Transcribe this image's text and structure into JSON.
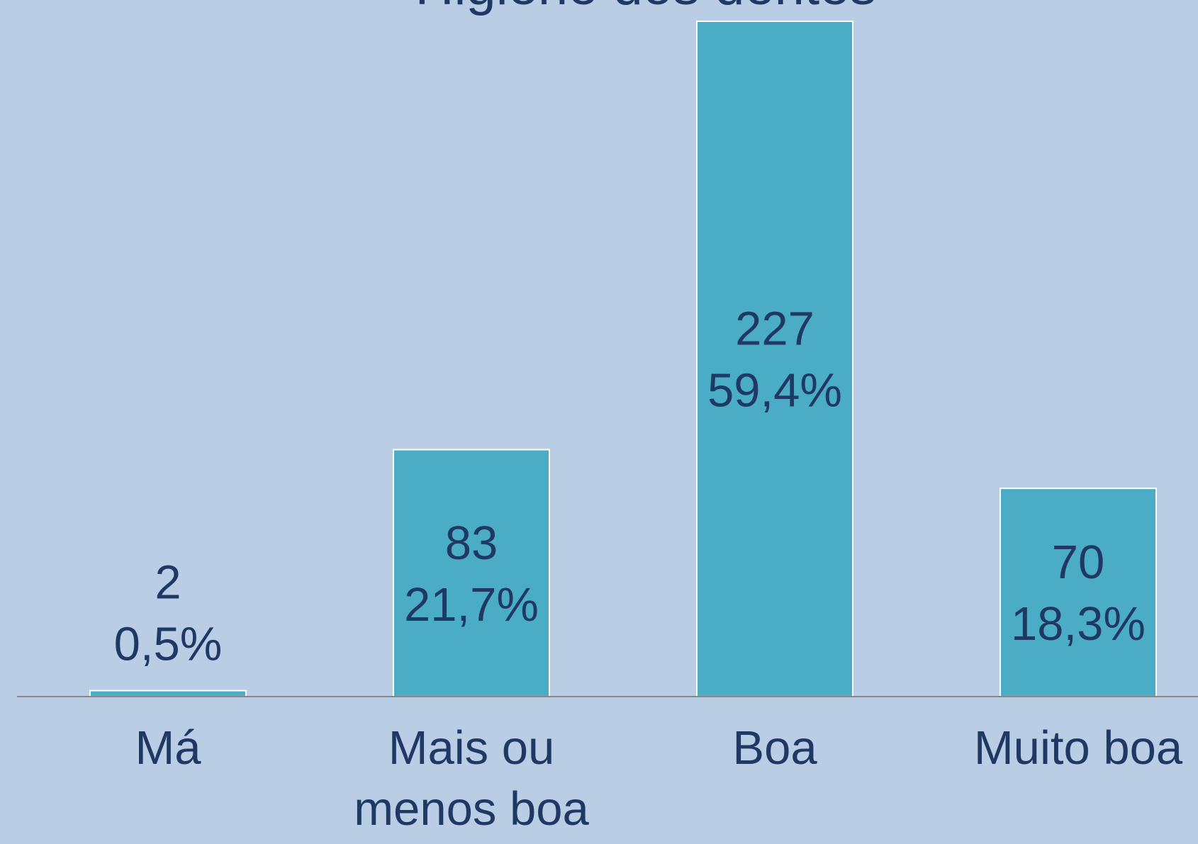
{
  "chart_data": {
    "type": "bar",
    "title": "Higiene dos dentes",
    "categories": [
      "Má",
      "Mais ou menos boa",
      "Boa",
      "Muito boa"
    ],
    "values": [
      2,
      83,
      227,
      70
    ],
    "percentages": [
      0.5,
      21.7,
      59.4,
      18.3
    ],
    "percentage_labels": [
      "0,5%",
      "21,7%",
      "59,4%",
      "18,3%"
    ],
    "color": "#4bacc6",
    "ylim": [
      0,
      227
    ]
  }
}
